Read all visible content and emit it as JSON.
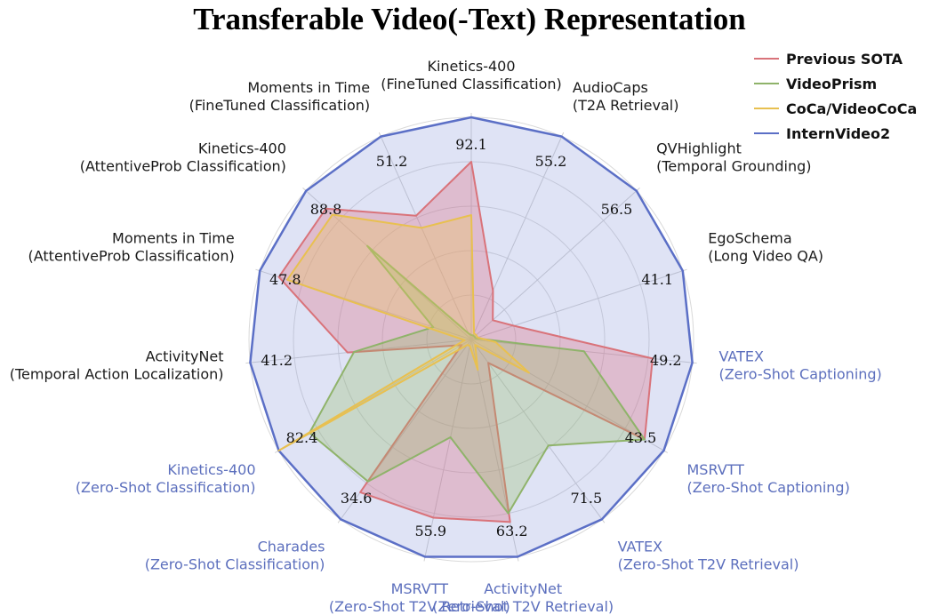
{
  "chart_data": {
    "type": "radar",
    "title": "Transferable Video(-Text) Representation",
    "axes": [
      {
        "l1": "Kinetics-400",
        "l2": "(FineTuned Classification)",
        "value_label": "92.1",
        "zero_shot": false
      },
      {
        "l1": "AudioCaps",
        "l2": "(T2A Retrieval)",
        "value_label": "55.2",
        "zero_shot": false
      },
      {
        "l1": "QVHighlight",
        "l2": "(Temporal Grounding)",
        "value_label": "56.5",
        "zero_shot": false
      },
      {
        "l1": "EgoSchema",
        "l2": "(Long Video QA)",
        "value_label": "41.1",
        "zero_shot": false
      },
      {
        "l1": "VATEX",
        "l2": "(Zero-Shot Captioning)",
        "value_label": "49.2",
        "zero_shot": true
      },
      {
        "l1": "MSRVTT",
        "l2": "(Zero-Shot Captioning)",
        "value_label": "43.5",
        "zero_shot": true
      },
      {
        "l1": "VATEX",
        "l2": "(Zero-Shot T2V Retrieval)",
        "value_label": "71.5",
        "zero_shot": true
      },
      {
        "l1": "ActivityNet",
        "l2": "(Zero-Shot T2V Retrieval)",
        "value_label": "63.2",
        "zero_shot": true
      },
      {
        "l1": "MSRVTT",
        "l2": "(Zero-Shot T2V Retrieval)",
        "value_label": "55.9",
        "zero_shot": true
      },
      {
        "l1": "Charades",
        "l2": "(Zero-Shot Classification)",
        "value_label": "34.6",
        "zero_shot": true
      },
      {
        "l1": "Kinetics-400",
        "l2": "(Zero-Shot Classification)",
        "value_label": "82.4",
        "zero_shot": true
      },
      {
        "l1": "ActivityNet",
        "l2": "(Temporal Action Localization)",
        "value_label": "41.2",
        "zero_shot": false
      },
      {
        "l1": "Moments in Time",
        "l2": "(AttentiveProb Classification)",
        "value_label": "47.8",
        "zero_shot": false
      },
      {
        "l1": "Kinetics-400",
        "l2": "(AttentiveProb Classification)",
        "value_label": "88.8",
        "zero_shot": false
      },
      {
        "l1": "Moments in Time",
        "l2": "(FineTuned Classification)",
        "value_label": "51.2",
        "zero_shot": false
      }
    ],
    "series": [
      {
        "name": "Previous SOTA",
        "color": "#d9737a",
        "fill": "rgba(221,100,120,0.30)",
        "values": [
          0.8,
          0.24,
          0.13,
          0.2,
          0.82,
          0.9,
          0.13,
          0.84,
          0.82,
          0.85,
          0.05,
          0.56,
          0.91,
          0.88,
          0.61
        ]
      },
      {
        "name": "VideoPrism",
        "color": "#8fb36a",
        "fill": "rgba(150,190,100,0.30)",
        "values": [
          0.02,
          0.02,
          0.02,
          0.02,
          0.51,
          0.9,
          0.59,
          0.8,
          0.45,
          0.79,
          0.84,
          0.53,
          0.18,
          0.63,
          0.03
        ]
      },
      {
        "name": "CoCa/VideoCoCa",
        "color": "#e8c050",
        "fill": "rgba(240,200,90,0.32)",
        "values": [
          0.56,
          0.03,
          0.03,
          0.03,
          0.11,
          0.3,
          0.03,
          0.14,
          0.03,
          0.03,
          1.0,
          0.03,
          0.87,
          0.84,
          0.55
        ]
      },
      {
        "name": "InternVideo2",
        "color": "#5b6fc6",
        "fill": "rgba(140,155,220,0.28)",
        "values": [
          1,
          1,
          1,
          1,
          1,
          1,
          1,
          1,
          1,
          1,
          1,
          1,
          1,
          1,
          1
        ]
      }
    ],
    "grid": true,
    "legend_position": "top-right"
  }
}
